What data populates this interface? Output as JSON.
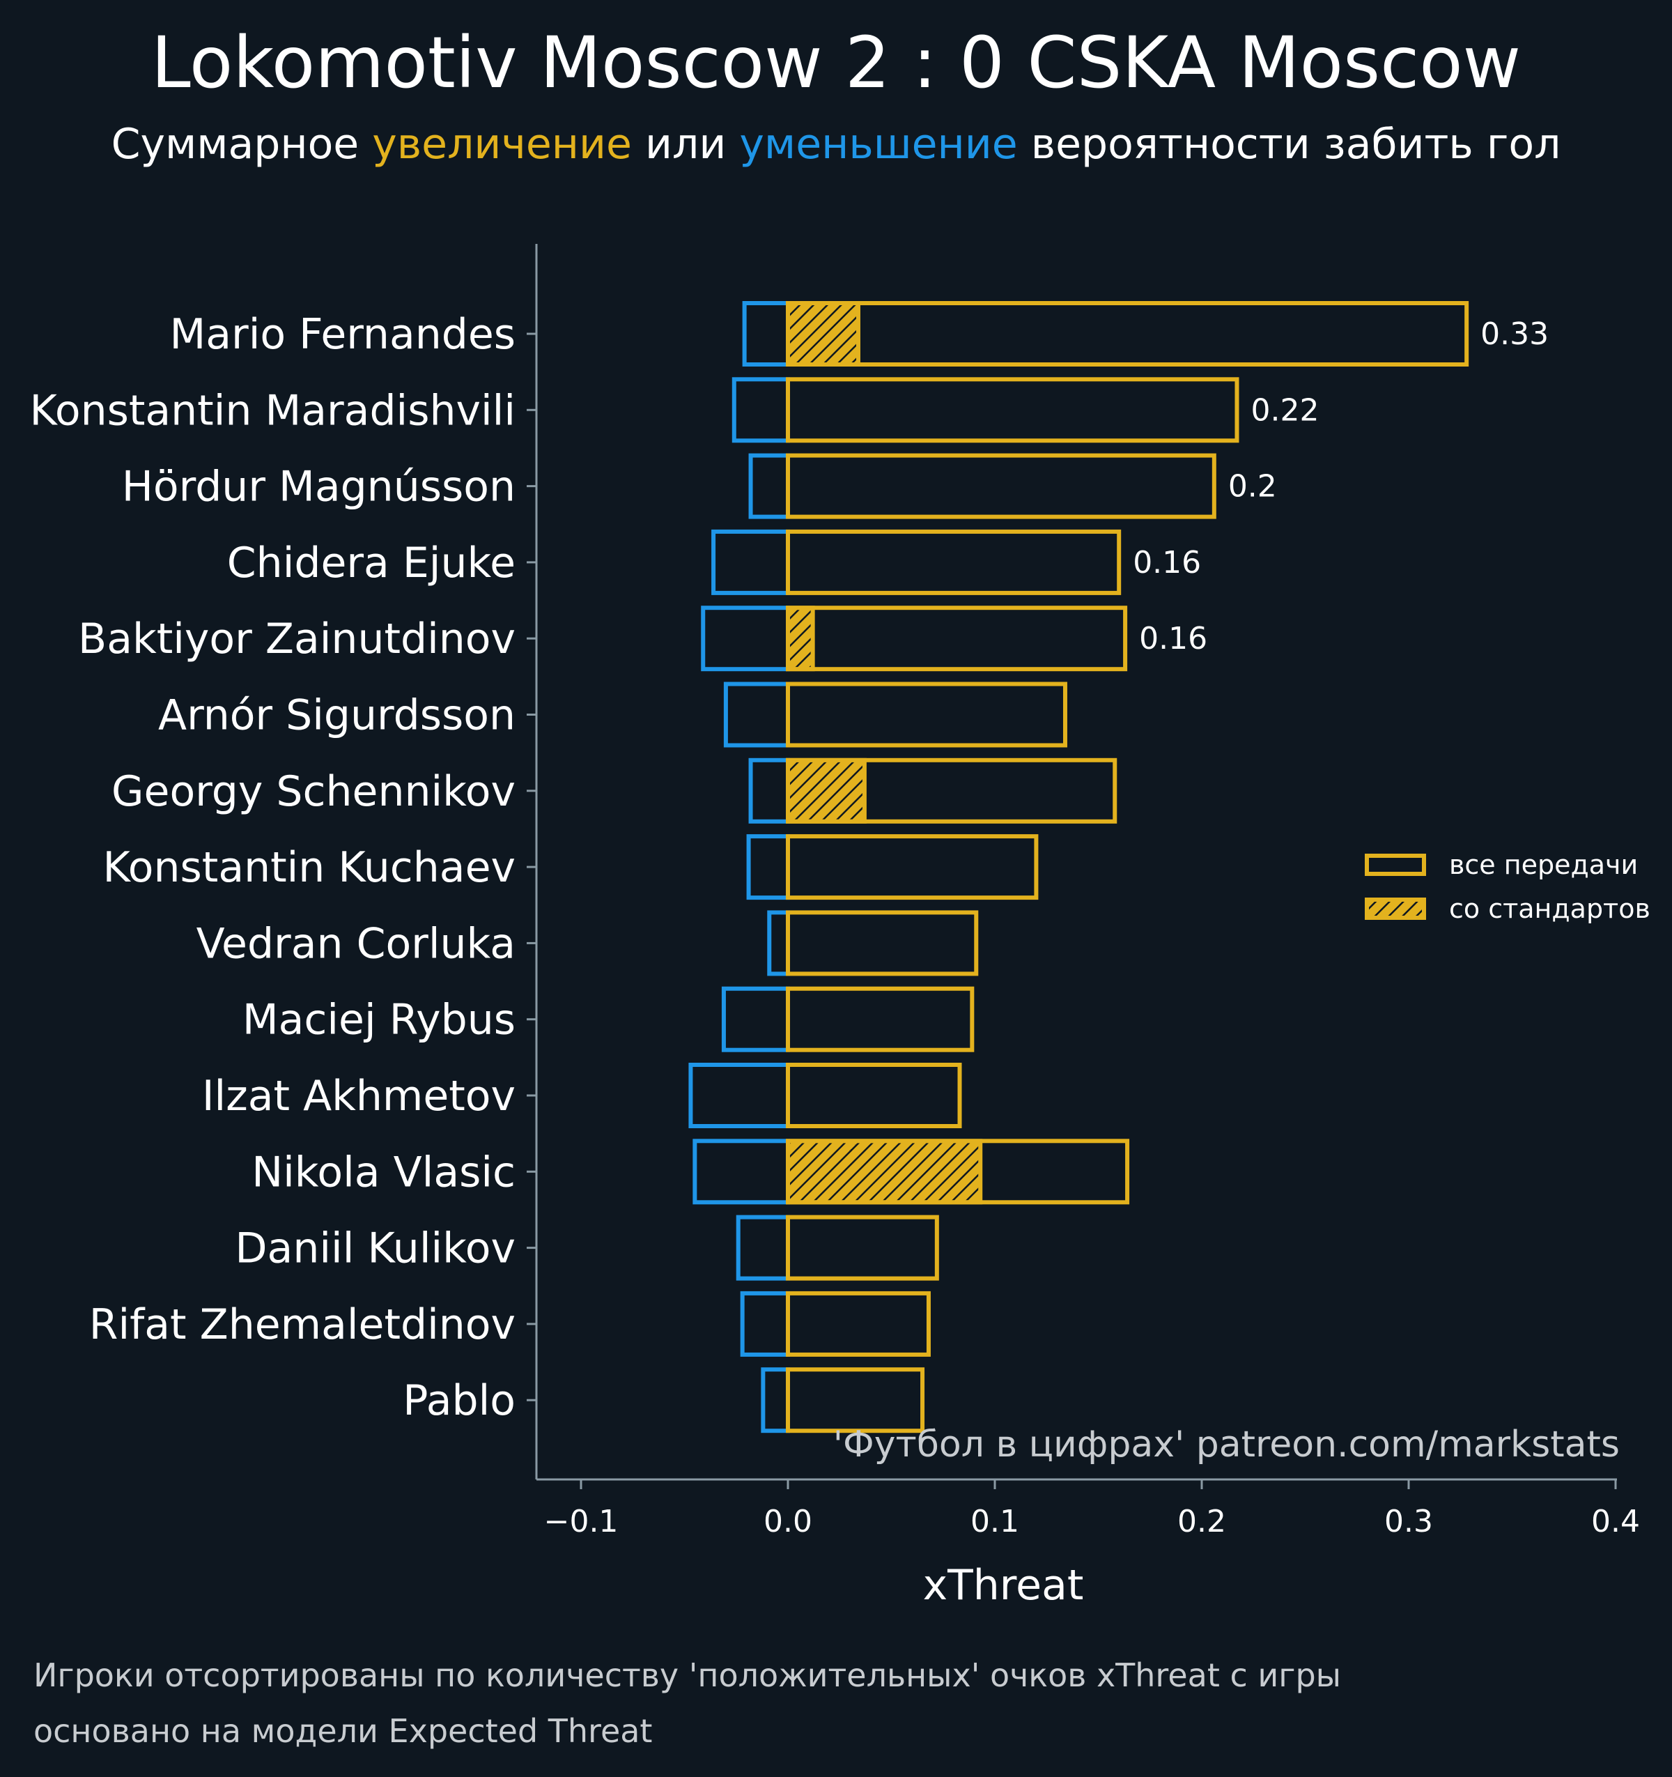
{
  "chart_data": {
    "type": "bar",
    "title": "Lokomotiv Moscow 2 : 0 CSKA Moscow",
    "subtitle": {
      "part1": "Суммарное ",
      "increase": "увеличение",
      "part2": " или ",
      "decrease": "уменьшение",
      "part3": " вероятности забить гол"
    },
    "xlabel": "xThreat",
    "xlim": [
      -0.12,
      0.4
    ],
    "xticks": [
      -0.1,
      0.0,
      0.1,
      0.2,
      0.3,
      0.4
    ],
    "xtick_labels": [
      "−0.1",
      "0.0",
      "0.1",
      "0.2",
      "0.3",
      "0.4"
    ],
    "categories": [
      "Mario Fernandes",
      "Konstantin Maradishvili",
      "Hördur Magnússon",
      "Chidera Ejuke",
      "Baktiyor Zainutdinov",
      "Arnór Sigurdsson",
      "Georgy Schennikov",
      "Konstantin Kuchaev",
      "Vedran Corluka",
      "Maciej Rybus",
      "Ilzat Akhmetov",
      "Nikola Vlasic",
      "Daniil Kulikov",
      "Rifat Zhemaletdinov",
      "Pablo"
    ],
    "series": [
      {
        "name": "все передачи",
        "kind": "positive",
        "values": [
          0.328,
          0.217,
          0.206,
          0.16,
          0.163,
          0.134,
          0.158,
          0.12,
          0.091,
          0.089,
          0.083,
          0.164,
          0.072,
          0.068,
          0.065
        ]
      },
      {
        "name": "negative",
        "kind": "negative",
        "values": [
          -0.021,
          -0.026,
          -0.018,
          -0.036,
          -0.041,
          -0.03,
          -0.018,
          -0.019,
          -0.009,
          -0.031,
          -0.047,
          -0.045,
          -0.024,
          -0.022,
          -0.012
        ]
      },
      {
        "name": "со стандартов",
        "kind": "set_pieces",
        "values": [
          0.034,
          0.0,
          0.0,
          0.0,
          0.012,
          0.0,
          0.037,
          0.0,
          0.0,
          0.0,
          0.0,
          0.093,
          0.0,
          0.0,
          0.0
        ]
      }
    ],
    "value_labels": [
      "0.33",
      "0.22",
      "0.2",
      "0.16",
      "0.16"
    ],
    "legend": {
      "position": "center-right",
      "items": [
        "все передачи",
        "со стандартов"
      ]
    },
    "credit": "'Футбол в цифрах' patreon.com/markstats"
  },
  "footnotes": [
    "Игроки отсортированы по количеству 'положительных' очков xThreat с игры",
    "основано на модели Expected Threat"
  ],
  "colors": {
    "background": "#0e1720",
    "positive": "#e3b21e",
    "negative": "#1f96e8",
    "axis": "#8a9aa4",
    "text": "#ffffff",
    "muted": "#c8ccd0"
  }
}
